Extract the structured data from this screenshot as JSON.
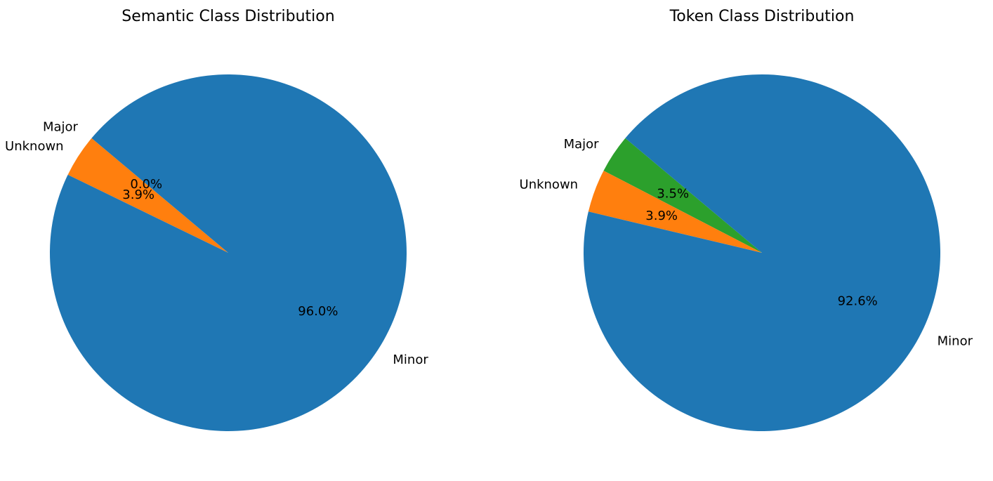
{
  "chart_data": [
    {
      "type": "pie",
      "title": "Semantic Class Distribution",
      "startangle": 140,
      "direction": "counterclockwise",
      "slices": [
        {
          "label": "Major",
          "value": 0.0,
          "pct_label": "0.0%",
          "color": "#2ca02c"
        },
        {
          "label": "Unknown",
          "value": 3.9,
          "pct_label": "3.9%",
          "color": "#ff7f0e"
        },
        {
          "label": "Minor",
          "value": 96.0,
          "pct_label": "96.0%",
          "color": "#1f77b4"
        }
      ]
    },
    {
      "type": "pie",
      "title": "Token Class Distribution",
      "startangle": 140,
      "direction": "counterclockwise",
      "slices": [
        {
          "label": "Major",
          "value": 3.5,
          "pct_label": "3.5%",
          "color": "#2ca02c"
        },
        {
          "label": "Unknown",
          "value": 3.9,
          "pct_label": "3.9%",
          "color": "#ff7f0e"
        },
        {
          "label": "Minor",
          "value": 92.6,
          "pct_label": "92.6%",
          "color": "#1f77b4"
        }
      ]
    }
  ]
}
